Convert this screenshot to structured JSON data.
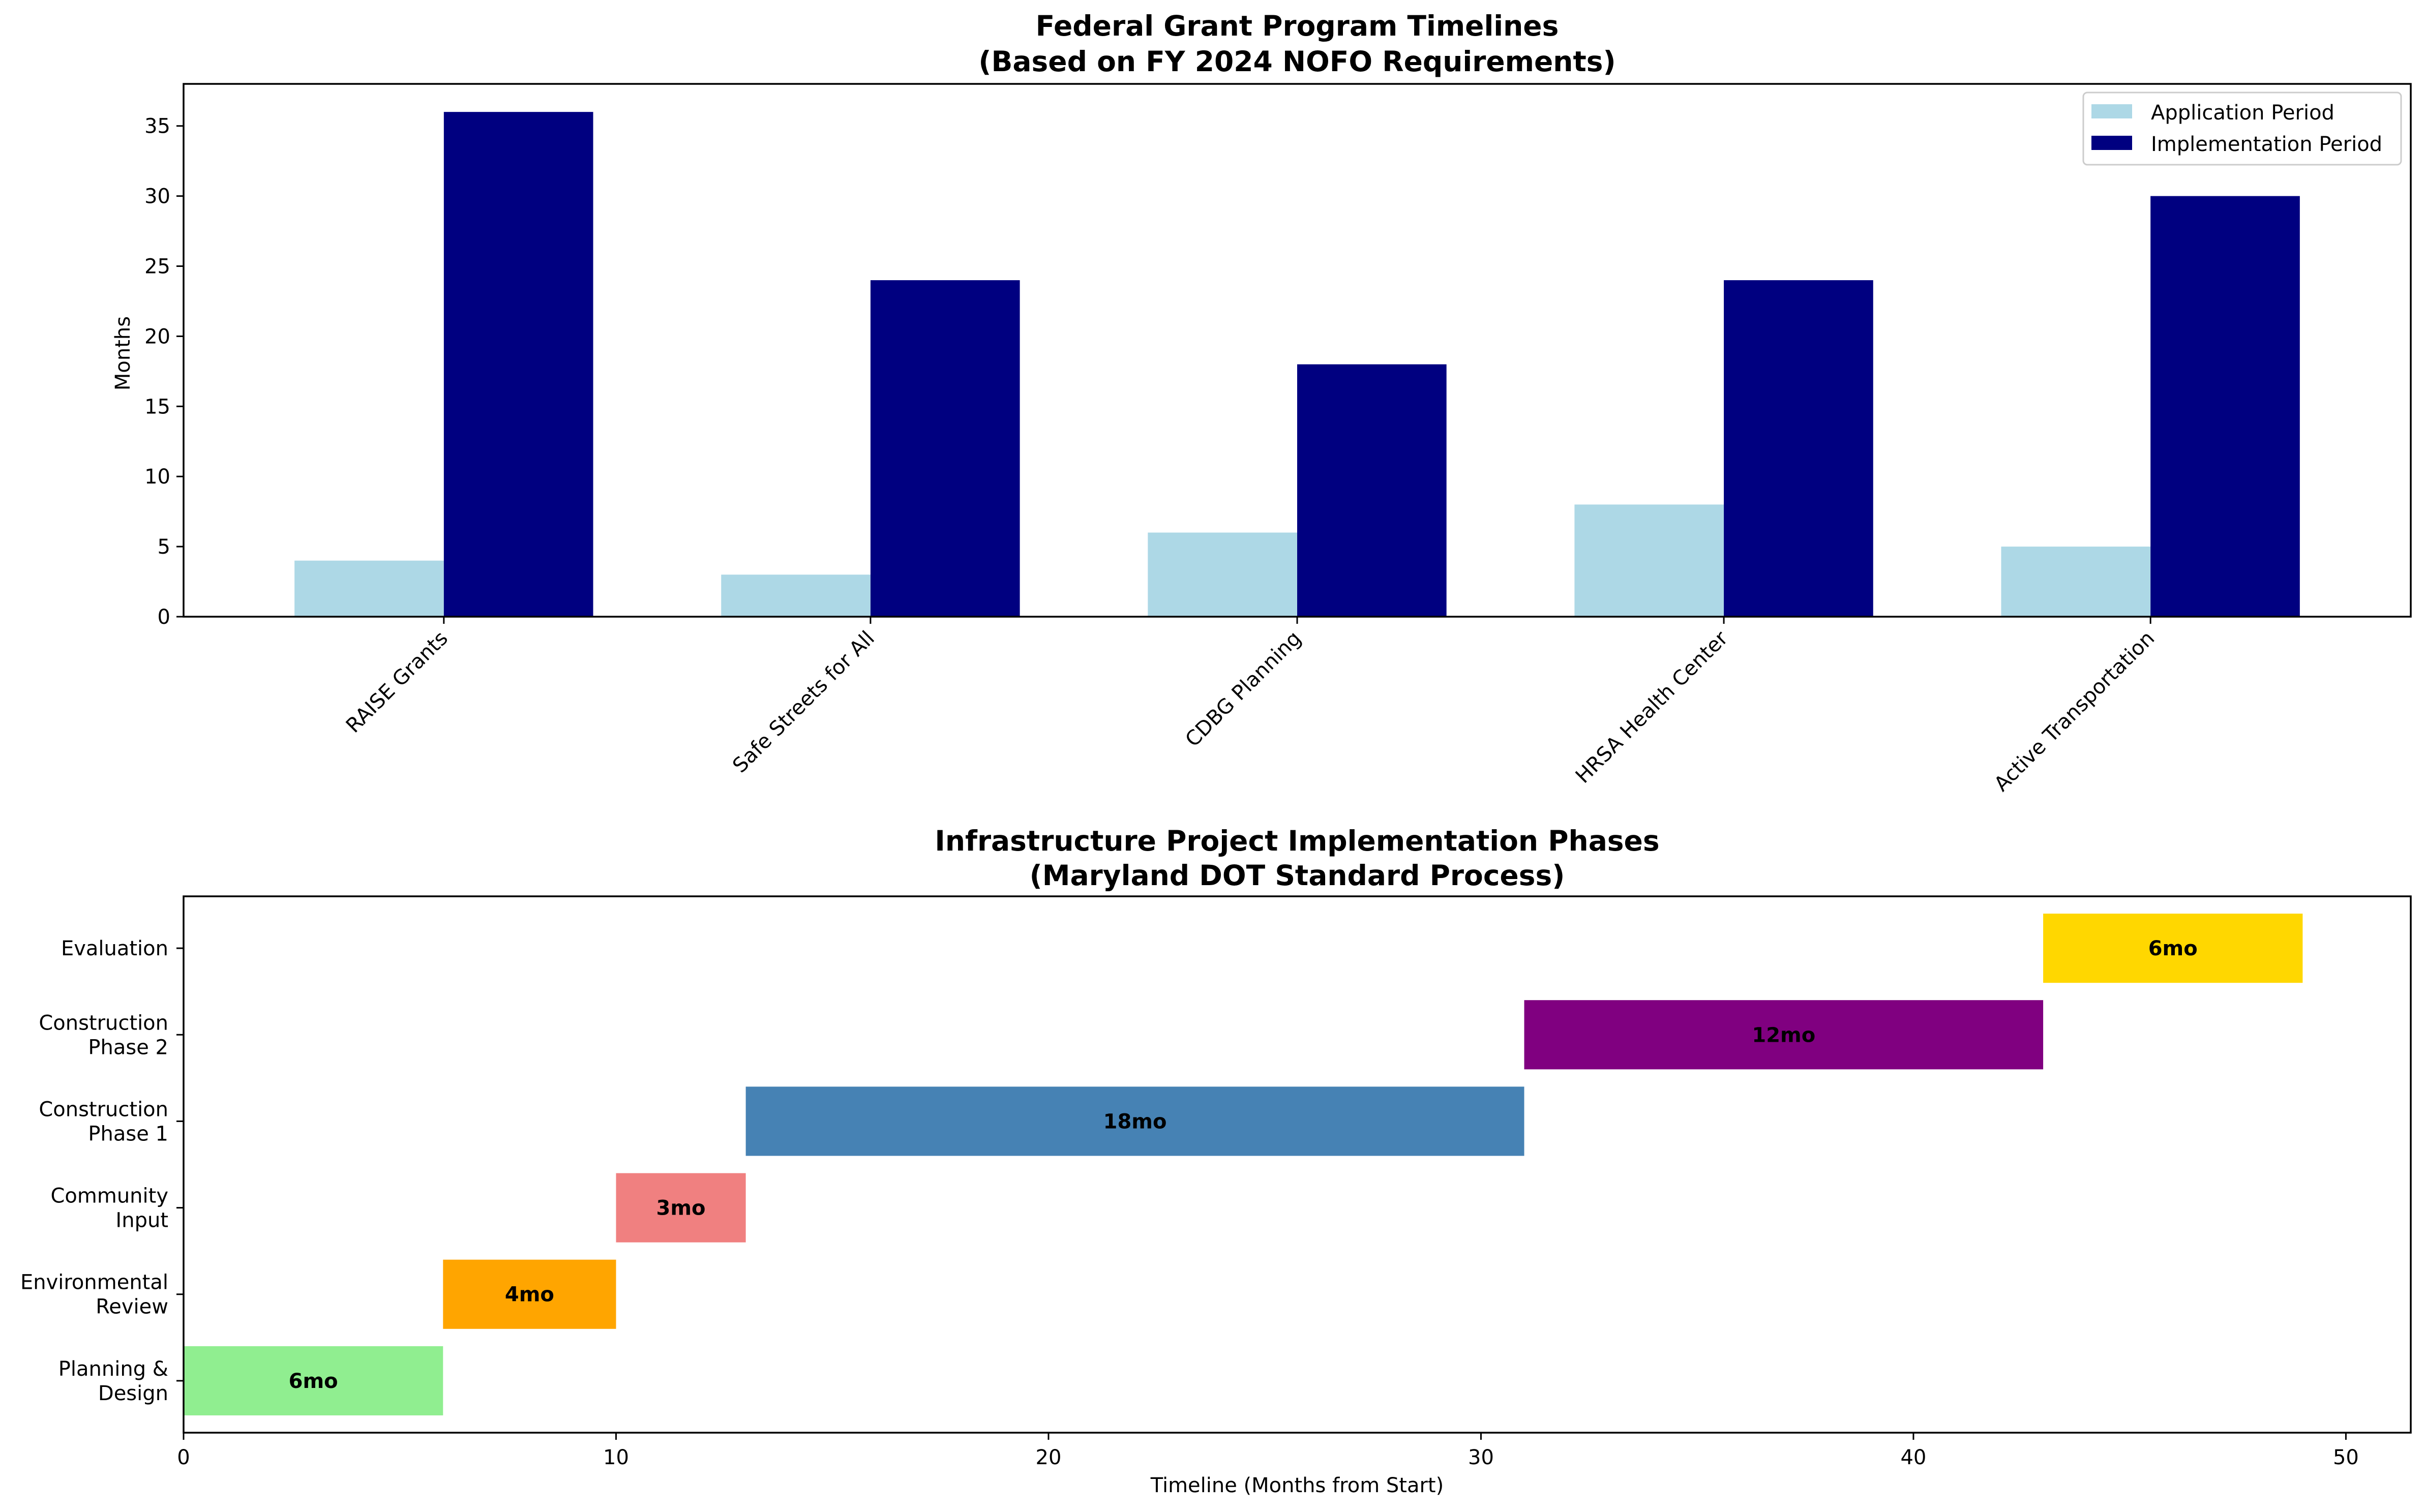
{
  "chart_data": [
    {
      "type": "bar",
      "title": "Federal Grant Program Timelines",
      "subtitle": "(Based on FY 2024 NOFO Requirements)",
      "xlabel": "",
      "ylabel": "Months",
      "categories": [
        "RAISE Grants",
        "Safe Streets for All",
        "CDBG Planning",
        "HRSA Health Center",
        "Active Transportation"
      ],
      "series": [
        {
          "name": "Application Period",
          "values": [
            4,
            3,
            6,
            8,
            5
          ],
          "color": "#add8e6"
        },
        {
          "name": "Implementation Period",
          "values": [
            36,
            24,
            18,
            24,
            30
          ],
          "color": "#000080"
        }
      ],
      "ylim": [
        0,
        38
      ],
      "yticks": [
        0,
        5,
        10,
        15,
        20,
        25,
        30,
        35
      ],
      "legend": "top-right",
      "grid": false
    },
    {
      "type": "bar",
      "orientation": "horizontal-gantt",
      "title": "Infrastructure Project Implementation Phases",
      "subtitle": "(Maryland DOT Standard Process)",
      "xlabel": "Timeline (Months from Start)",
      "ylabel": "",
      "xlim": [
        0,
        51.5
      ],
      "xticks": [
        0,
        10,
        20,
        30,
        40,
        50
      ],
      "phases": [
        {
          "name": "Planning & Design",
          "label_lines": [
            "Planning &",
            "Design"
          ],
          "start": 0,
          "duration": 6,
          "bar_label": "6mo",
          "color": "#90ee90"
        },
        {
          "name": "Environmental Review",
          "label_lines": [
            "Environmental",
            "Review"
          ],
          "start": 6,
          "duration": 4,
          "bar_label": "4mo",
          "color": "#ffa500"
        },
        {
          "name": "Community Input",
          "label_lines": [
            "Community",
            "Input"
          ],
          "start": 10,
          "duration": 3,
          "bar_label": "3mo",
          "color": "#f08080"
        },
        {
          "name": "Construction Phase 1",
          "label_lines": [
            "Construction",
            "Phase 1"
          ],
          "start": 13,
          "duration": 18,
          "bar_label": "18mo",
          "color": "#4682b4"
        },
        {
          "name": "Construction Phase 2",
          "label_lines": [
            "Construction",
            "Phase 2"
          ],
          "start": 31,
          "duration": 12,
          "bar_label": "12mo",
          "color": "#800080"
        },
        {
          "name": "Evaluation",
          "label_lines": [
            "Evaluation"
          ],
          "start": 43,
          "duration": 6,
          "bar_label": "6mo",
          "color": "#ffd700"
        }
      ],
      "legend": "none",
      "grid": false
    }
  ]
}
